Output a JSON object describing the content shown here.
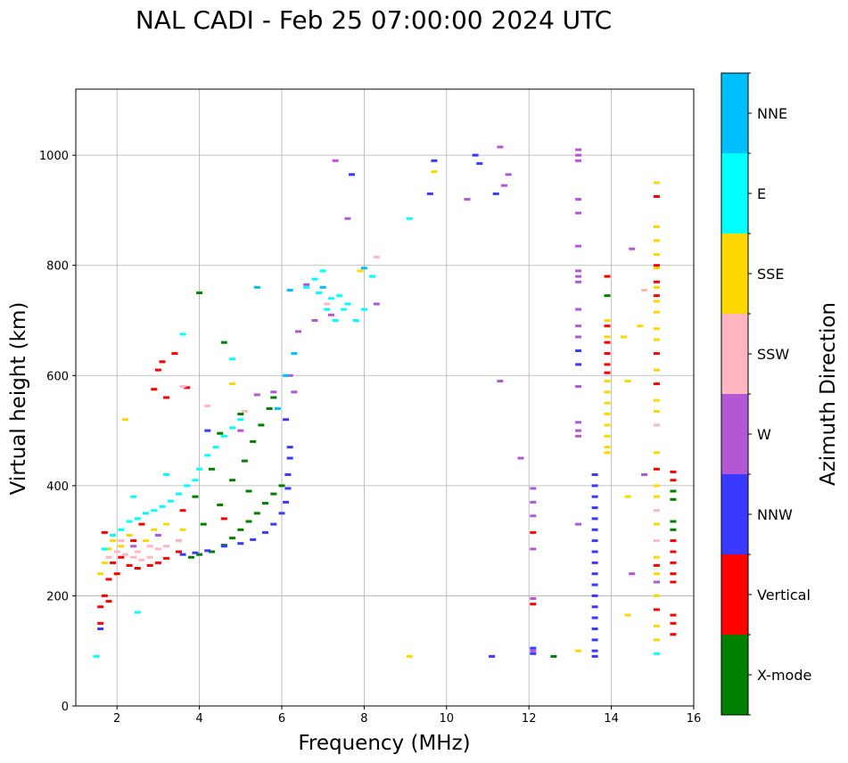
{
  "chart_data": {
    "type": "scatter",
    "title": "NAL CADI - Feb 25 07:00:00 2024 UTC",
    "xlabel": "Frequency (MHz)",
    "ylabel": "Virtual height (km)",
    "xlim": [
      1,
      16
    ],
    "ylim": [
      0,
      1120
    ],
    "xticks": [
      2,
      4,
      6,
      8,
      10,
      12,
      14,
      16
    ],
    "yticks": [
      0,
      200,
      400,
      600,
      800,
      1000
    ],
    "grid": true,
    "colorbar": {
      "label": "Azimuth Direction",
      "categories": [
        {
          "name": "X-mode",
          "color": "#008000"
        },
        {
          "name": "Vertical",
          "color": "#ff0000"
        },
        {
          "name": "NNW",
          "color": "#3a3aff"
        },
        {
          "name": "W",
          "color": "#b257d6"
        },
        {
          "name": "SSW",
          "color": "#ffb6c1"
        },
        {
          "name": "SSE",
          "color": "#ffd700"
        },
        {
          "name": "E",
          "color": "#00ffff"
        },
        {
          "name": "NNE",
          "color": "#00bfff"
        }
      ]
    },
    "traces": [
      {
        "name": "Vertical",
        "points": [
          [
            1.6,
            150
          ],
          [
            1.6,
            180
          ],
          [
            1.7,
            200
          ],
          [
            1.8,
            190
          ],
          [
            1.8,
            230
          ],
          [
            1.9,
            260
          ],
          [
            2.0,
            240
          ],
          [
            2.1,
            270
          ],
          [
            2.3,
            255
          ],
          [
            2.5,
            250
          ],
          [
            2.8,
            255
          ],
          [
            3.0,
            260
          ],
          [
            3.2,
            268
          ],
          [
            3.5,
            280
          ],
          [
            3.0,
            610
          ],
          [
            3.1,
            625
          ],
          [
            3.4,
            640
          ],
          [
            3.7,
            578
          ],
          [
            2.9,
            575
          ],
          [
            3.2,
            560
          ],
          [
            13.9,
            780
          ],
          [
            13.9,
            690
          ],
          [
            13.9,
            660
          ],
          [
            13.9,
            640
          ],
          [
            13.9,
            620
          ],
          [
            13.9,
            605
          ],
          [
            15.1,
            925
          ],
          [
            15.1,
            800
          ],
          [
            15.1,
            770
          ],
          [
            15.1,
            745
          ],
          [
            15.1,
            640
          ],
          [
            15.1,
            585
          ],
          [
            15.1,
            430
          ],
          [
            15.1,
            255
          ],
          [
            15.1,
            225
          ],
          [
            15.1,
            175
          ],
          [
            12.1,
            185
          ],
          [
            12.1,
            315
          ],
          [
            15.5,
            130
          ],
          [
            15.5,
            150
          ],
          [
            15.5,
            165
          ],
          [
            15.5,
            280
          ],
          [
            15.5,
            260
          ],
          [
            15.5,
            240
          ],
          [
            15.5,
            300
          ],
          [
            15.5,
            225
          ],
          [
            15.5,
            410
          ],
          [
            15.5,
            425
          ],
          [
            2.6,
            330
          ],
          [
            3.6,
            355
          ],
          [
            4.6,
            340
          ],
          [
            1.7,
            315
          ],
          [
            2.4,
            300
          ]
        ]
      },
      {
        "name": "X-mode",
        "points": [
          [
            3.8,
            270
          ],
          [
            4.0,
            275
          ],
          [
            4.3,
            280
          ],
          [
            4.6,
            292
          ],
          [
            4.8,
            305
          ],
          [
            5.0,
            320
          ],
          [
            5.2,
            335
          ],
          [
            5.4,
            350
          ],
          [
            5.6,
            368
          ],
          [
            5.8,
            385
          ],
          [
            6.0,
            400
          ],
          [
            4.1,
            330
          ],
          [
            4.5,
            365
          ],
          [
            4.8,
            410
          ],
          [
            5.1,
            445
          ],
          [
            5.3,
            480
          ],
          [
            5.5,
            510
          ],
          [
            5.7,
            540
          ],
          [
            5.8,
            560
          ],
          [
            4.5,
            495
          ],
          [
            5.0,
            530
          ],
          [
            4.0,
            750
          ],
          [
            4.6,
            660
          ],
          [
            12.6,
            90
          ],
          [
            15.5,
            375
          ],
          [
            15.5,
            390
          ],
          [
            15.5,
            320
          ],
          [
            15.5,
            335
          ],
          [
            13.9,
            700
          ],
          [
            13.9,
            745
          ],
          [
            5.2,
            390
          ],
          [
            4.3,
            430
          ],
          [
            3.9,
            380
          ]
        ]
      },
      {
        "name": "NNW",
        "points": [
          [
            3.6,
            275
          ],
          [
            3.9,
            278
          ],
          [
            4.2,
            282
          ],
          [
            4.6,
            290
          ],
          [
            5.0,
            295
          ],
          [
            5.3,
            302
          ],
          [
            5.6,
            315
          ],
          [
            5.8,
            330
          ],
          [
            6.0,
            350
          ],
          [
            6.1,
            370
          ],
          [
            6.15,
            395
          ],
          [
            6.15,
            420
          ],
          [
            6.2,
            450
          ],
          [
            6.2,
            470
          ],
          [
            6.1,
            520
          ],
          [
            13.6,
            420
          ],
          [
            13.6,
            400
          ],
          [
            13.6,
            380
          ],
          [
            13.6,
            360
          ],
          [
            13.6,
            340
          ],
          [
            13.6,
            320
          ],
          [
            13.6,
            300
          ],
          [
            13.6,
            280
          ],
          [
            13.6,
            260
          ],
          [
            13.6,
            240
          ],
          [
            13.6,
            220
          ],
          [
            13.6,
            200
          ],
          [
            13.6,
            180
          ],
          [
            13.6,
            160
          ],
          [
            13.6,
            140
          ],
          [
            13.6,
            120
          ],
          [
            13.6,
            100
          ],
          [
            13.6,
            90
          ],
          [
            13.2,
            620
          ],
          [
            13.2,
            645
          ],
          [
            12.1,
            105
          ],
          [
            12.1,
            95
          ],
          [
            11.1,
            90
          ],
          [
            9.6,
            930
          ],
          [
            10.8,
            985
          ],
          [
            9.7,
            990
          ],
          [
            10.7,
            1000
          ],
          [
            11.2,
            930
          ],
          [
            7.7,
            965
          ],
          [
            1.6,
            140
          ],
          [
            4.2,
            500
          ]
        ]
      },
      {
        "name": "W",
        "points": [
          [
            6.8,
            700
          ],
          [
            7.2,
            710
          ],
          [
            6.6,
            765
          ],
          [
            6.4,
            680
          ],
          [
            6.2,
            600
          ],
          [
            5.8,
            570
          ],
          [
            6.3,
            570
          ],
          [
            13.2,
            1010
          ],
          [
            13.2,
            1000
          ],
          [
            13.2,
            990
          ],
          [
            13.2,
            920
          ],
          [
            13.2,
            895
          ],
          [
            13.2,
            835
          ],
          [
            13.2,
            790
          ],
          [
            13.2,
            780
          ],
          [
            13.2,
            770
          ],
          [
            13.2,
            720
          ],
          [
            13.2,
            690
          ],
          [
            13.2,
            670
          ],
          [
            13.2,
            580
          ],
          [
            13.2,
            515
          ],
          [
            13.2,
            500
          ],
          [
            13.2,
            490
          ],
          [
            13.2,
            330
          ],
          [
            14.5,
            830
          ],
          [
            14.8,
            420
          ],
          [
            14.5,
            240
          ],
          [
            15.1,
            225
          ],
          [
            12.1,
            395
          ],
          [
            12.1,
            370
          ],
          [
            12.1,
            345
          ],
          [
            12.1,
            285
          ],
          [
            12.1,
            195
          ],
          [
            12.1,
            100
          ],
          [
            11.3,
            590
          ],
          [
            11.5,
            965
          ],
          [
            11.8,
            450
          ],
          [
            11.4,
            945
          ],
          [
            11.3,
            1015
          ],
          [
            10.5,
            920
          ],
          [
            7.6,
            885
          ],
          [
            7.3,
            990
          ],
          [
            5.4,
            565
          ],
          [
            5.0,
            500
          ],
          [
            3.5,
            300
          ],
          [
            3.0,
            310
          ],
          [
            2.4,
            290
          ],
          [
            8.3,
            730
          ]
        ]
      },
      {
        "name": "SSW",
        "points": [
          [
            1.8,
            270
          ],
          [
            2.0,
            280
          ],
          [
            2.2,
            275
          ],
          [
            2.4,
            270
          ],
          [
            2.6,
            265
          ],
          [
            2.8,
            270
          ],
          [
            3.0,
            285
          ],
          [
            3.2,
            290
          ],
          [
            3.5,
            300
          ],
          [
            2.1,
            300
          ],
          [
            2.5,
            280
          ],
          [
            2.8,
            290
          ],
          [
            14.8,
            755
          ],
          [
            15.1,
            510
          ],
          [
            15.1,
            355
          ],
          [
            15.1,
            300
          ],
          [
            8.3,
            815
          ],
          [
            7.1,
            730
          ],
          [
            3.6,
            580
          ],
          [
            4.2,
            545
          ],
          [
            5.1,
            535
          ]
        ]
      },
      {
        "name": "SSE",
        "points": [
          [
            1.6,
            240
          ],
          [
            1.7,
            260
          ],
          [
            1.8,
            285
          ],
          [
            1.9,
            300
          ],
          [
            2.1,
            290
          ],
          [
            2.3,
            310
          ],
          [
            2.7,
            300
          ],
          [
            2.9,
            320
          ],
          [
            3.2,
            330
          ],
          [
            3.6,
            320
          ],
          [
            2.2,
            520
          ],
          [
            4.8,
            585
          ],
          [
            13.9,
            590
          ],
          [
            13.9,
            570
          ],
          [
            13.9,
            550
          ],
          [
            13.9,
            530
          ],
          [
            13.9,
            510
          ],
          [
            13.9,
            490
          ],
          [
            13.9,
            470
          ],
          [
            13.9,
            460
          ],
          [
            13.9,
            700
          ],
          [
            13.9,
            670
          ],
          [
            14.3,
            670
          ],
          [
            14.4,
            590
          ],
          [
            14.7,
            690
          ],
          [
            14.4,
            380
          ],
          [
            14.4,
            165
          ],
          [
            15.1,
            950
          ],
          [
            15.1,
            870
          ],
          [
            15.1,
            845
          ],
          [
            15.1,
            820
          ],
          [
            15.1,
            795
          ],
          [
            15.1,
            760
          ],
          [
            15.1,
            735
          ],
          [
            15.1,
            715
          ],
          [
            15.1,
            685
          ],
          [
            15.1,
            665
          ],
          [
            15.1,
            610
          ],
          [
            15.1,
            555
          ],
          [
            15.1,
            535
          ],
          [
            15.1,
            460
          ],
          [
            15.1,
            400
          ],
          [
            15.1,
            380
          ],
          [
            15.1,
            330
          ],
          [
            15.1,
            270
          ],
          [
            15.1,
            240
          ],
          [
            15.1,
            200
          ],
          [
            15.1,
            145
          ],
          [
            15.1,
            120
          ],
          [
            13.2,
            100
          ],
          [
            9.1,
            90
          ],
          [
            9.7,
            970
          ],
          [
            7.9,
            790
          ]
        ]
      },
      {
        "name": "E",
        "points": [
          [
            1.5,
            90
          ],
          [
            1.7,
            285
          ],
          [
            1.9,
            310
          ],
          [
            2.1,
            320
          ],
          [
            2.3,
            335
          ],
          [
            2.5,
            340
          ],
          [
            2.7,
            350
          ],
          [
            2.9,
            355
          ],
          [
            3.1,
            362
          ],
          [
            3.3,
            372
          ],
          [
            3.5,
            385
          ],
          [
            3.7,
            400
          ],
          [
            3.9,
            410
          ],
          [
            4.0,
            430
          ],
          [
            4.2,
            455
          ],
          [
            4.4,
            470
          ],
          [
            4.6,
            490
          ],
          [
            4.8,
            505
          ],
          [
            5.0,
            520
          ],
          [
            2.4,
            380
          ],
          [
            3.2,
            420
          ],
          [
            3.6,
            675
          ],
          [
            4.8,
            630
          ],
          [
            6.6,
            760
          ],
          [
            6.8,
            775
          ],
          [
            7.0,
            790
          ],
          [
            7.2,
            740
          ],
          [
            7.4,
            745
          ],
          [
            7.5,
            720
          ],
          [
            7.6,
            730
          ],
          [
            7.8,
            700
          ],
          [
            8.0,
            720
          ],
          [
            8.2,
            780
          ],
          [
            6.9,
            750
          ],
          [
            7.1,
            720
          ],
          [
            7.3,
            700
          ],
          [
            9.1,
            885
          ],
          [
            15.1,
            95
          ],
          [
            2.5,
            170
          ]
        ]
      },
      {
        "name": "NNE",
        "points": [
          [
            6.3,
            640
          ],
          [
            6.1,
            600
          ],
          [
            5.4,
            760
          ],
          [
            8.0,
            795
          ],
          [
            6.2,
            755
          ],
          [
            5.9,
            540
          ],
          [
            7.0,
            760
          ]
        ]
      }
    ]
  }
}
